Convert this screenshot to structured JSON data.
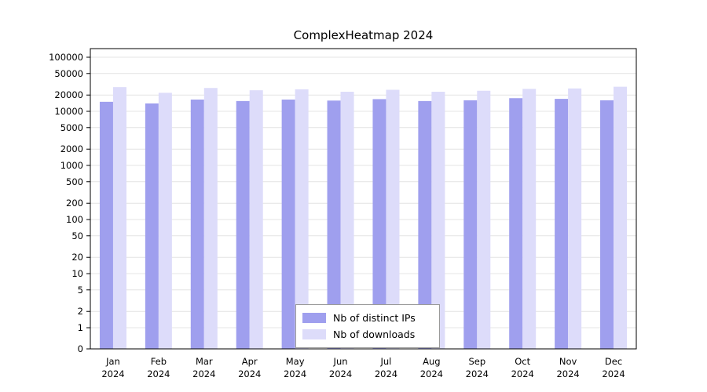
{
  "chart_data": {
    "type": "bar",
    "title": "ComplexHeatmap 2024",
    "x_tick_year": "2024",
    "categories": [
      "Jan",
      "Feb",
      "Mar",
      "Apr",
      "May",
      "Jun",
      "Jul",
      "Aug",
      "Sep",
      "Oct",
      "Nov",
      "Dec"
    ],
    "series": [
      {
        "name": "Nb of distinct IPs",
        "color": "#9f9fee",
        "values": [
          15000,
          14000,
          16500,
          15500,
          16500,
          15800,
          16800,
          15500,
          16000,
          17500,
          17000,
          16000
        ]
      },
      {
        "name": "Nb of downloads",
        "color": "#dddcfa",
        "values": [
          28000,
          22000,
          27000,
          24500,
          25500,
          23000,
          25000,
          23000,
          24000,
          26000,
          26500,
          28500
        ]
      }
    ],
    "y_ticks": [
      0,
      1,
      2,
      5,
      10,
      20,
      50,
      100,
      200,
      500,
      1000,
      2000,
      5000,
      10000,
      20000,
      50000,
      100000
    ],
    "y_scale": "log",
    "ylim": [
      0,
      100000
    ],
    "grid": "horizontal",
    "gridline_color": "#e4e4e4",
    "frame_color": "#000000",
    "legend_position": "bottom-center"
  }
}
